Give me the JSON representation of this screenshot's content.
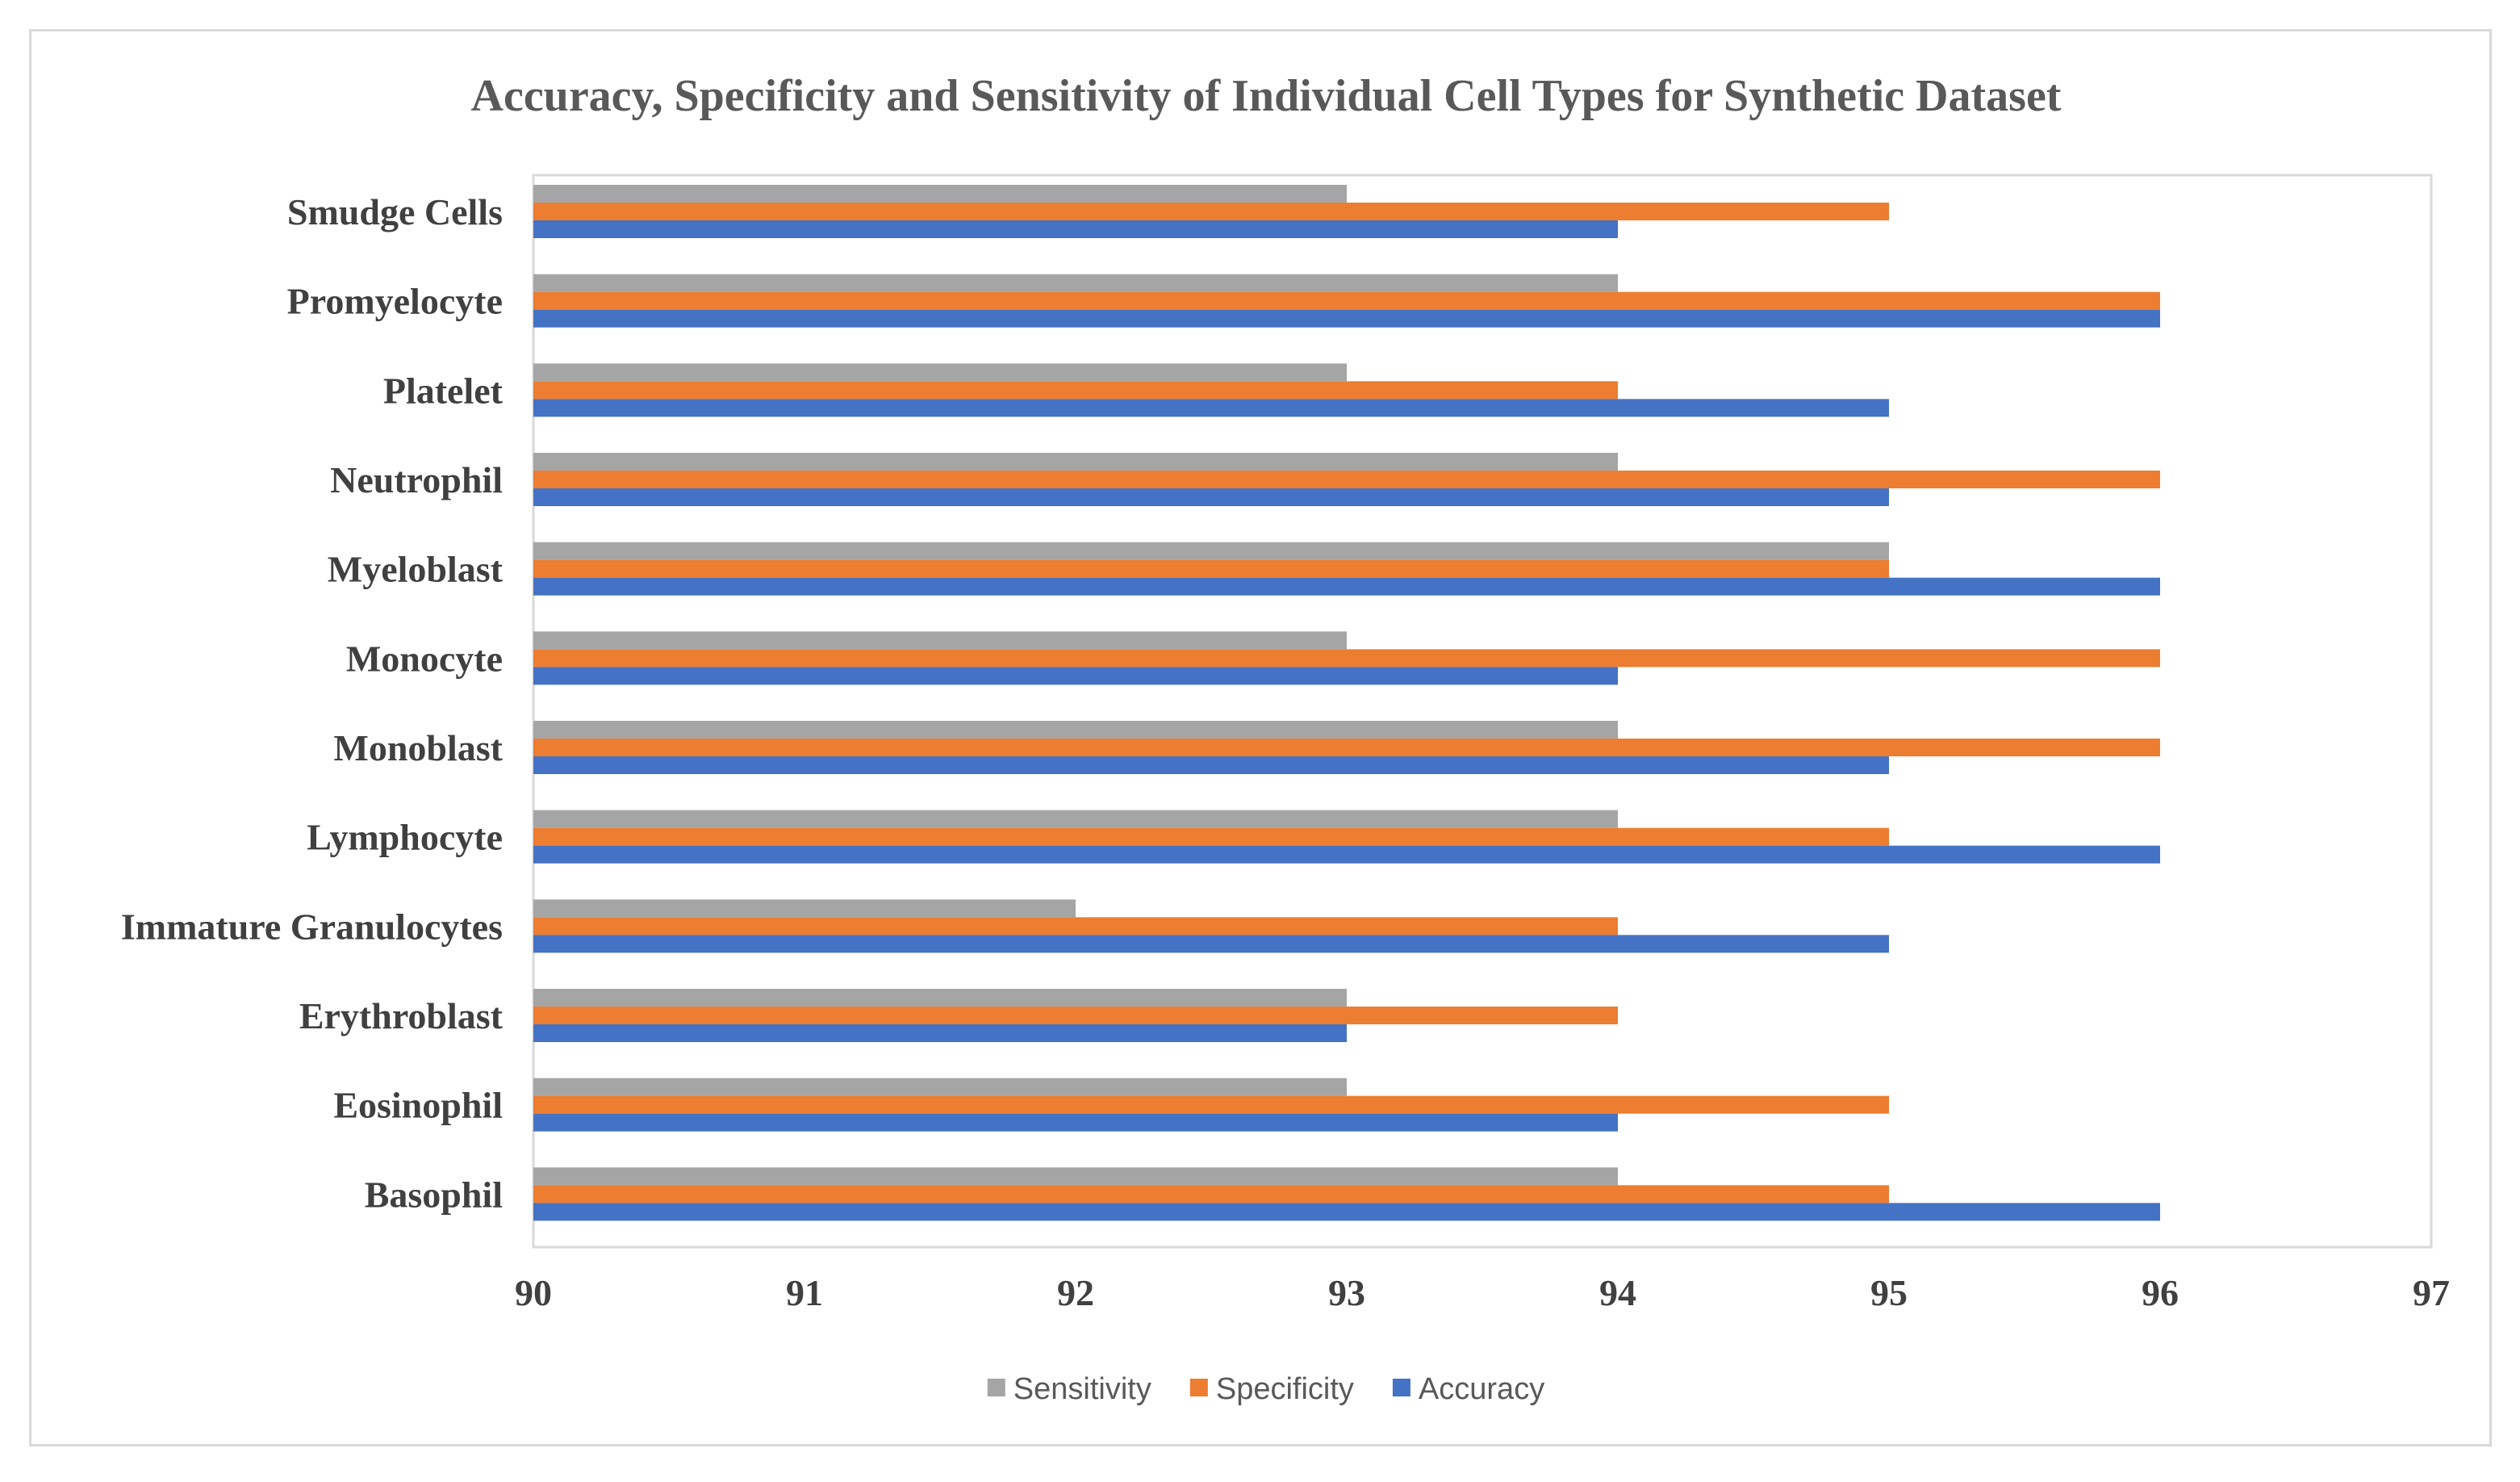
{
  "chart_data": {
    "type": "bar",
    "orientation": "horizontal",
    "title": "Accuracy, Specificity  and Sensitivity  of Individual  Cell  Types for Synthetic  Dataset",
    "categories": [
      "Smudge Cells",
      "Promyelocyte",
      "Platelet",
      "Neutrophil",
      "Myeloblast",
      "Monocyte",
      "Monoblast",
      "Lymphocyte",
      "Immature Granulocytes",
      "Erythroblast",
      "Eosinophil",
      "Basophil"
    ],
    "series": [
      {
        "name": "Sensitivity",
        "color": "#a5a5a5",
        "values": [
          93,
          94,
          93,
          94,
          95,
          93,
          94,
          94,
          92,
          93,
          93,
          94
        ]
      },
      {
        "name": "Specificity",
        "color": "#ed7d31",
        "values": [
          95,
          96,
          94,
          96,
          95,
          96,
          96,
          95,
          94,
          94,
          95,
          95
        ]
      },
      {
        "name": "Accuracy",
        "color": "#4472c4",
        "values": [
          94,
          96,
          95,
          95,
          96,
          94,
          95,
          96,
          95,
          93,
          94,
          96
        ]
      }
    ],
    "xlim": [
      90,
      97
    ],
    "xticks": [
      90,
      91,
      92,
      93,
      94,
      95,
      96,
      97
    ],
    "xlabel": "",
    "ylabel": "",
    "grid": false,
    "legend_position": "bottom"
  }
}
